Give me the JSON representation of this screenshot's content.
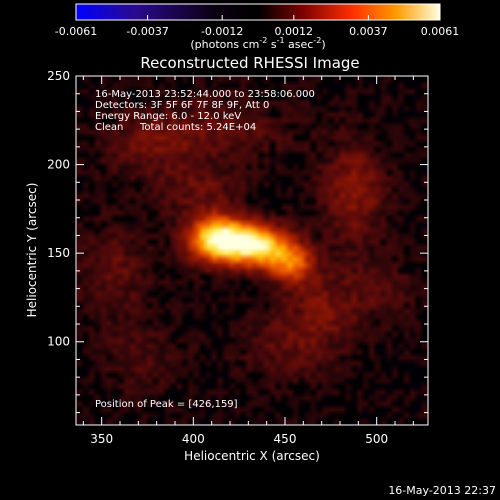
{
  "chart_data": {
    "type": "heatmap",
    "title": "Reconstructed RHESSI Image",
    "xlabel": "Heliocentric X (arcsec)",
    "ylabel": "Heliocentric Y (arcsec)",
    "xlim": [
      336,
      528
    ],
    "ylim": [
      53,
      250
    ],
    "xticks": [
      350,
      400,
      450,
      500
    ],
    "yticks": [
      100,
      150,
      200,
      250
    ],
    "colorbar": {
      "min": -0.0061,
      "max": 0.0061,
      "tick_values": [
        -0.0061,
        -0.0037,
        -0.0012,
        0.0012,
        0.0037,
        0.0061
      ],
      "tick_labels": [
        "-0.0061",
        "-0.0037",
        "-0.0012",
        "0.0012",
        "0.0037",
        "0.0061"
      ],
      "unit_label": "(photons cm",
      "unit_parts": [
        "(photons cm",
        "-2",
        " s",
        "-1",
        " asec",
        "-2",
        ")"
      ],
      "colormap": [
        "#0000ff",
        "#200060",
        "#000000",
        "#7a0000",
        "#ff3000",
        "#ff9a00",
        "#ffffd0"
      ]
    },
    "annotations": [
      "16-May-2013 23:52:44.000 to 23:58:06.000",
      "Detectors: 3F 5F 6F 7F 8F 9F, Att 0",
      "Energy Range: 6.0 - 12.0 keV",
      "Clean",
      "Total counts: 5.24E+04"
    ],
    "peak_label": "Position of Peak = [426,159]",
    "sources": [
      {
        "x": 414,
        "y": 158,
        "amplitude": 0.0061,
        "sigma_x": 12,
        "sigma_y": 9
      },
      {
        "x": 436,
        "y": 154,
        "amplitude": 0.0048,
        "sigma_x": 12,
        "sigma_y": 8
      },
      {
        "x": 454,
        "y": 144,
        "amplitude": 0.0032,
        "sigma_x": 9,
        "sigma_y": 8
      },
      {
        "x": 488,
        "y": 186,
        "amplitude": 0.0016,
        "sigma_x": 12,
        "sigma_y": 20
      },
      {
        "x": 470,
        "y": 118,
        "amplitude": 0.0012,
        "sigma_x": 14,
        "sigma_y": 14
      },
      {
        "x": 356,
        "y": 140,
        "amplitude": 0.001,
        "sigma_x": 14,
        "sigma_y": 18
      },
      {
        "x": 378,
        "y": 212,
        "amplitude": 0.0011,
        "sigma_x": 20,
        "sigma_y": 14
      },
      {
        "x": 420,
        "y": 220,
        "amplitude": 0.0009,
        "sigma_x": 24,
        "sigma_y": 12
      },
      {
        "x": 452,
        "y": 96,
        "amplitude": 0.0009,
        "sigma_x": 18,
        "sigma_y": 14
      },
      {
        "x": 500,
        "y": 130,
        "amplitude": 0.0008,
        "sigma_x": 14,
        "sigma_y": 14
      },
      {
        "x": 370,
        "y": 90,
        "amplitude": 0.0007,
        "sigma_x": 16,
        "sigma_y": 14
      },
      {
        "x": 404,
        "y": 185,
        "amplitude": 0.001,
        "sigma_x": 16,
        "sigma_y": 10
      }
    ]
  },
  "footer": {
    "timestamp": "16-May-2013 22:37"
  }
}
